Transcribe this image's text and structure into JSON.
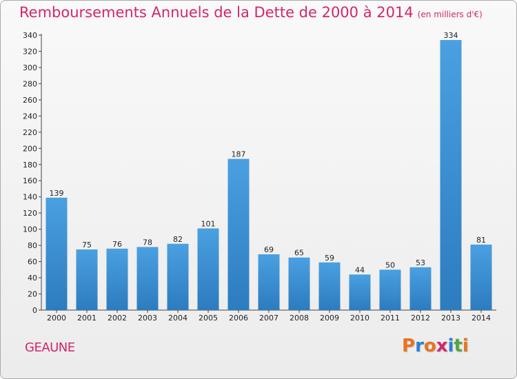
{
  "title": "Remboursements Annuels de la Dette de 2000 à 2014",
  "unit": "(en milliers d'€)",
  "commune": "GEAUNE",
  "logo": {
    "letters": [
      "P",
      "r",
      "o",
      "x",
      "i",
      "t",
      "i"
    ],
    "colors": [
      "#e8741f",
      "#2b7fd6",
      "#e8741f",
      "#d3266a",
      "#2b7fd6",
      "#52a83b",
      "#e8741f"
    ]
  },
  "colors": {
    "bar": "#4aa0e0",
    "bar_dark": "#2c7cbf",
    "title": "#d3266a"
  },
  "chart_data": {
    "type": "bar",
    "categories": [
      "2000",
      "2001",
      "2002",
      "2003",
      "2004",
      "2005",
      "2006",
      "2007",
      "2008",
      "2009",
      "2010",
      "2011",
      "2012",
      "2013",
      "2014"
    ],
    "values": [
      139,
      75,
      76,
      78,
      82,
      101,
      187,
      69,
      65,
      59,
      44,
      50,
      53,
      334,
      81
    ],
    "ylim": [
      0,
      340
    ],
    "yticks": [
      0,
      20,
      40,
      60,
      80,
      100,
      120,
      140,
      160,
      180,
      200,
      220,
      240,
      260,
      280,
      300,
      320,
      340
    ],
    "grid": false
  }
}
